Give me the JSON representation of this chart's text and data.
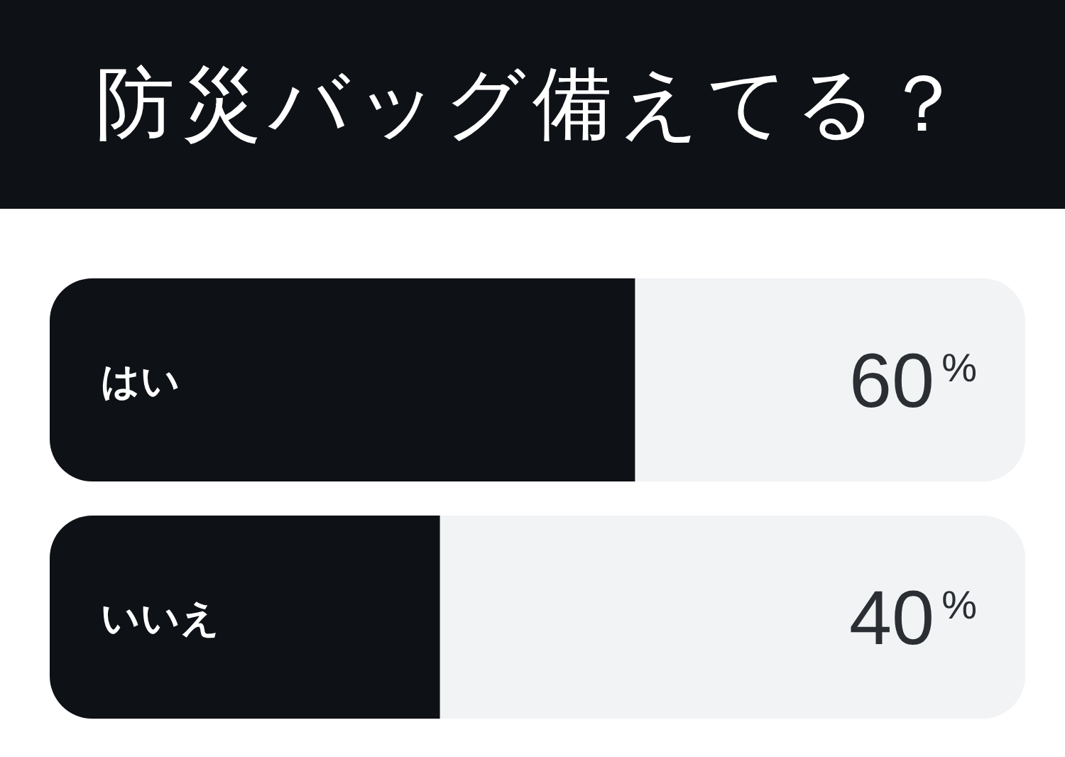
{
  "chart_data": {
    "type": "bar",
    "orientation": "horizontal",
    "title": "防災バッグ備えてる？",
    "categories": [
      "はい",
      "いいえ"
    ],
    "values": [
      60,
      40
    ],
    "color": "#0e1116",
    "value_labels": [
      "60$^{%}$",
      "40$^{%}$"
    ],
    "xlim": [
      0,
      100
    ]
  }
}
